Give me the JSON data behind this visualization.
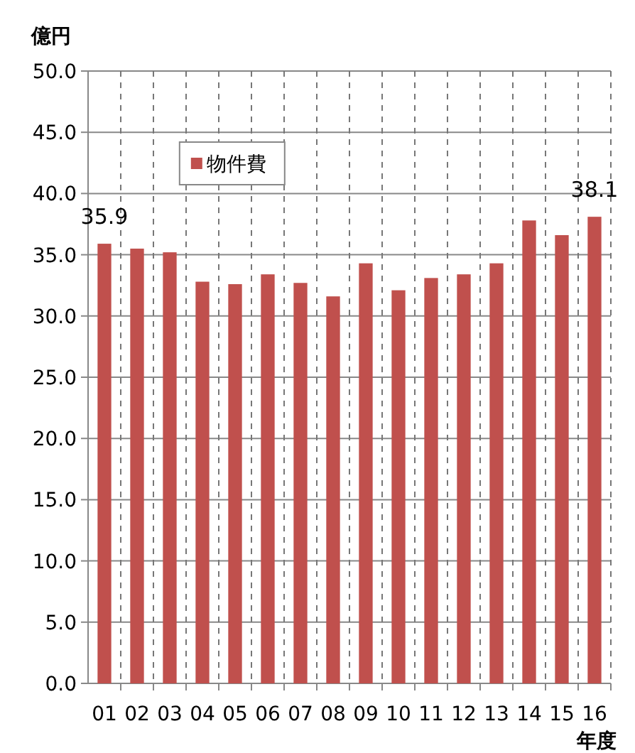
{
  "chart_data": {
    "type": "bar",
    "ylabel": "億円",
    "xlabel": "年度",
    "categories": [
      "01",
      "02",
      "03",
      "04",
      "05",
      "06",
      "07",
      "08",
      "09",
      "10",
      "11",
      "12",
      "13",
      "14",
      "15",
      "16"
    ],
    "series": [
      {
        "name": "物件費",
        "color": "#c0504d",
        "values": [
          35.9,
          35.5,
          35.2,
          32.8,
          32.6,
          33.4,
          32.7,
          31.6,
          34.3,
          32.1,
          33.1,
          33.4,
          34.3,
          37.8,
          36.6,
          38.1
        ],
        "value_labels": [
          "35.9",
          null,
          null,
          null,
          null,
          null,
          null,
          null,
          null,
          null,
          null,
          null,
          null,
          null,
          null,
          "38.1"
        ]
      }
    ],
    "ylim": [
      0,
      50
    ],
    "yticks": [
      {
        "value": 0,
        "label": "0.0"
      },
      {
        "value": 5,
        "label": "5.0"
      },
      {
        "value": 10,
        "label": "10.0"
      },
      {
        "value": 15,
        "label": "15.0"
      },
      {
        "value": 20,
        "label": "20.0"
      },
      {
        "value": 25,
        "label": "25.0"
      },
      {
        "value": 30,
        "label": "30.0"
      },
      {
        "value": 35,
        "label": "35.0"
      },
      {
        "value": 40,
        "label": "40.0"
      },
      {
        "value": 45,
        "label": "45.0"
      },
      {
        "value": 50,
        "label": "50.0"
      }
    ],
    "grid": true,
    "legend": "top left"
  }
}
